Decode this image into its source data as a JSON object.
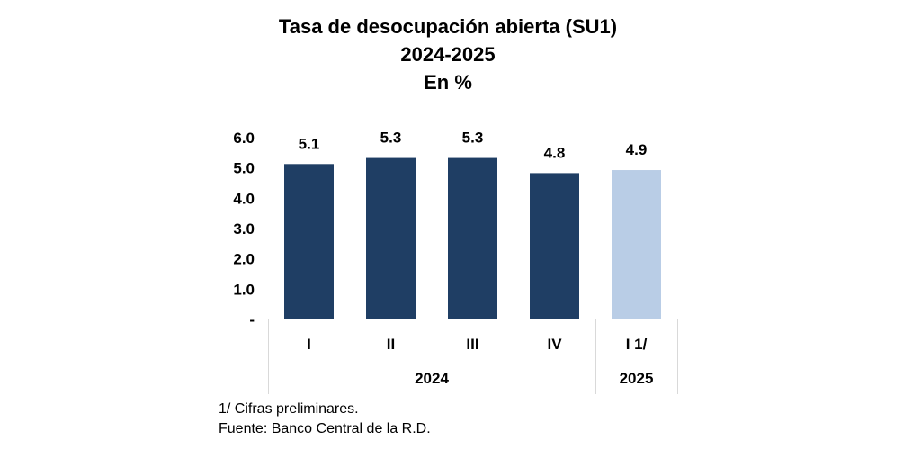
{
  "chart_data": {
    "type": "bar",
    "title": "Tasa de desocupación abierta (SU1)",
    "subtitle": "2024-2025",
    "unit_label": "En %",
    "categories": [
      "I",
      "II",
      "III",
      "IV",
      "I 1/"
    ],
    "groups": [
      {
        "label": "2024",
        "categories": [
          "I",
          "II",
          "III",
          "IV"
        ]
      },
      {
        "label": "2025",
        "categories": [
          "I 1/"
        ]
      }
    ],
    "values": [
      5.1,
      5.3,
      5.3,
      4.8,
      4.9
    ],
    "value_labels": [
      "5.1",
      "5.3",
      "5.3",
      "4.8",
      "4.9"
    ],
    "bar_colors": [
      "#1f3e64",
      "#1f3e64",
      "#1f3e64",
      "#1f3e64",
      "#b9cde6"
    ],
    "ylim": [
      0,
      6
    ],
    "yticks": [
      0,
      1,
      2,
      3,
      4,
      5,
      6
    ],
    "ytick_labels": [
      "-",
      "1.0",
      "2.0",
      "3.0",
      "4.0",
      "5.0",
      "6.0"
    ],
    "xlabel": "",
    "ylabel": "",
    "grid": false,
    "legend": "none"
  },
  "footnotes": {
    "note": "1/ Cifras preliminares.",
    "source": "Fuente: Banco Central de la R.D."
  }
}
